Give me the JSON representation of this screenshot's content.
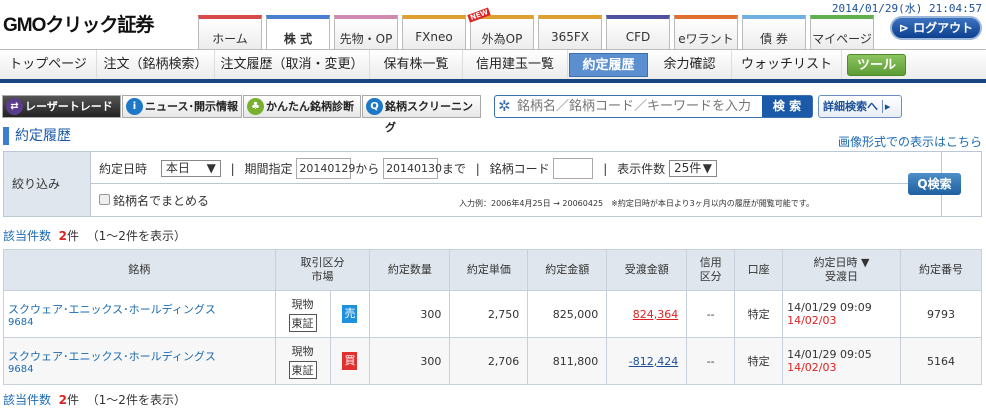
{
  "header": {
    "logo_brand": "GMO",
    "logo_rest": "クリック証券",
    "clock": "2014/01/29(水) 21:04:57",
    "logout": "ログアウト",
    "new_badge": "NEW",
    "tabs": [
      {
        "label": "ホーム",
        "color": "#d84a4a"
      },
      {
        "label": "株 式",
        "color": "#4a7fd0"
      },
      {
        "label": "先物・OP",
        "color": "#d08ab0"
      },
      {
        "label": "FXneo",
        "color": "#e0a030"
      },
      {
        "label": "外為OP",
        "color": "#e0a030"
      },
      {
        "label": "365FX",
        "color": "#e0a030"
      },
      {
        "label": "CFD",
        "color": "#5050a0"
      },
      {
        "label": "eワラント",
        "color": "#e07030"
      },
      {
        "label": "債 券",
        "color": "#70b0e0"
      },
      {
        "label": "マイページ",
        "color": "#60b050"
      }
    ]
  },
  "subnav": [
    "トップページ",
    "注文（銘柄検索）",
    "注文履歴（取消・変更）",
    "保有株一覧",
    "信用建玉一覧",
    "約定履歴",
    "余力確認",
    "ウォッチリスト",
    "ツール"
  ],
  "toolbar": {
    "laser": "レーザートレード",
    "news": "ニュース･開示情報",
    "diag": "かんたん銘柄診断",
    "screen": "銘柄スクリーニング",
    "search_placeholder": "銘柄名／銘柄コード／キーワードを入力",
    "search_btn": "検 索",
    "detail": "詳細検索へ"
  },
  "page": {
    "title": "約定履歴",
    "image_link": "画像形式での表示はこちら"
  },
  "filter": {
    "label": "絞り込み",
    "date_label": "約定日時",
    "date_value": "本日",
    "period_label": "期間指定",
    "from": "20140129",
    "from_word": "から",
    "to": "20140130",
    "to_word": "まで",
    "code_label": "銘柄コード",
    "code_value": "",
    "count_label": "表示件数",
    "count_value": "25件",
    "group_label": "銘柄名でまとめる",
    "hint": "入力例：2006年4月25日 → 20060425　※約定日時が本日より3ヶ月以内の履歴が閲覧可能です。",
    "search": "Q検索"
  },
  "summary": {
    "label": "該当件数",
    "n": "2",
    "unit": "件",
    "range": "（1～2件を表示）"
  },
  "table": {
    "headers": [
      "銘柄",
      "取引区分",
      "市場",
      "約定数量",
      "約定単価",
      "約定金額",
      "受渡金額",
      "信用",
      "区分",
      "口座",
      "約定日時 ▼",
      "受渡日",
      "約定番号"
    ],
    "rows": [
      {
        "name": "スクウェア･エニックス･ホールディングス",
        "code": "9684",
        "kind": "現物",
        "market": "東証",
        "side": "売",
        "side_color": "#1e90e0",
        "qty": "300",
        "price": "2,750",
        "amount": "825,000",
        "settle": "824,364",
        "margin": "--",
        "account": "特定",
        "datetime": "14/01/29 09:09",
        "settle_date": "14/02/03",
        "no": "9793"
      },
      {
        "name": "スクウェア･エニックス･ホールディングス",
        "code": "9684",
        "kind": "現物",
        "market": "東証",
        "side": "買",
        "side_color": "#e03030",
        "qty": "300",
        "price": "2,706",
        "amount": "811,800",
        "settle": "-812,424",
        "margin": "--",
        "account": "特定",
        "datetime": "14/01/29 09:05",
        "settle_date": "14/02/03",
        "no": "5164"
      }
    ]
  }
}
